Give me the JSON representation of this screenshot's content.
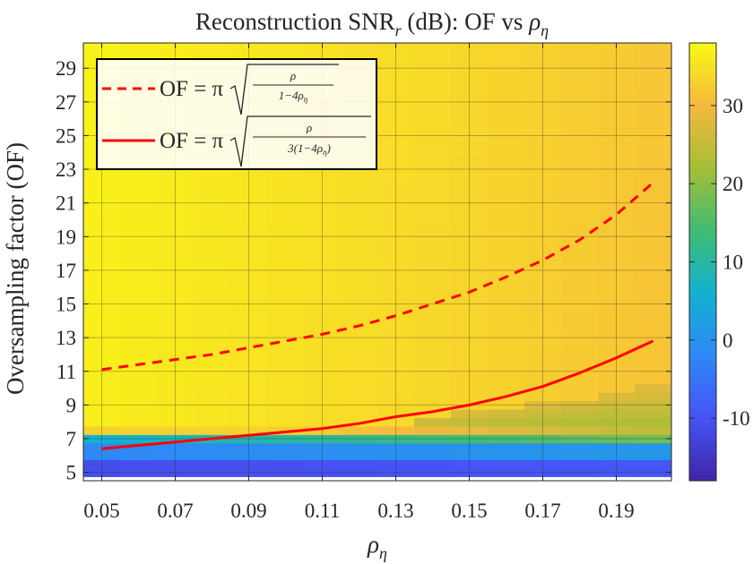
{
  "chart_data": {
    "type": "heatmap",
    "title": "Reconstruction SNR",
    "title_sub": "r",
    "title_rest": " (dB): OF vs ",
    "title_rho": "ρ",
    "title_rho_sub": "η",
    "xlabel_sym": "ρ",
    "xlabel_sub": "η",
    "ylabel": "Oversampling factor (OF)",
    "x_ticks": [
      "0.05",
      "0.07",
      "0.09",
      "0.11",
      "0.13",
      "0.15",
      "0.17",
      "0.19"
    ],
    "y_ticks": [
      "5",
      "7",
      "9",
      "11",
      "13",
      "15",
      "17",
      "19",
      "21",
      "23",
      "25",
      "27",
      "29"
    ],
    "xlim": [
      0.045,
      0.205
    ],
    "ylim": [
      4.5,
      30.5
    ],
    "colorbar": {
      "range": [
        -18,
        38
      ],
      "ticks": [
        "-10",
        "0",
        "10",
        "20",
        "30"
      ],
      "tick_values": [
        -10,
        0,
        10,
        20,
        30
      ]
    },
    "heatmap": {
      "x_step": 0.01,
      "x_start": 0.05,
      "y_step": 0.5,
      "y_start": 5,
      "description": "SNR grid generated from functional model"
    },
    "legend": {
      "entries": [
        {
          "name": "dashed",
          "lhs": "OF = π",
          "num": "ρ",
          "den": "1−4ρ",
          "den_sub": "η",
          "style": "dashed"
        },
        {
          "name": "solid",
          "lhs": "OF = π",
          "num": "ρ",
          "den": "3(1−4ρ",
          "den_sub": "η",
          "den_end": ")",
          "style": "solid"
        }
      ],
      "placement": "top-left"
    },
    "series": [
      {
        "name": "OF = π√(ρ/(1−4ρη))",
        "style": "dashed",
        "color": "#ff0000",
        "x": [
          0.05,
          0.06,
          0.07,
          0.08,
          0.09,
          0.1,
          0.11,
          0.12,
          0.13,
          0.14,
          0.15,
          0.16,
          0.17,
          0.18,
          0.19,
          0.2
        ],
        "y": [
          11.1,
          11.4,
          11.7,
          12.0,
          12.4,
          12.8,
          13.2,
          13.7,
          14.3,
          15.0,
          15.7,
          16.6,
          17.6,
          18.8,
          20.3,
          22.2
        ]
      },
      {
        "name": "OF = π√(ρ/(3(1−4ρη)))",
        "style": "solid",
        "color": "#ff0000",
        "x": [
          0.05,
          0.06,
          0.07,
          0.08,
          0.09,
          0.1,
          0.11,
          0.12,
          0.13,
          0.14,
          0.15,
          0.16,
          0.17,
          0.18,
          0.19,
          0.2
        ],
        "y": [
          6.4,
          6.6,
          6.8,
          7.0,
          7.2,
          7.4,
          7.6,
          7.9,
          8.3,
          8.6,
          9.0,
          9.5,
          10.1,
          10.9,
          11.8,
          12.8
        ]
      }
    ]
  }
}
